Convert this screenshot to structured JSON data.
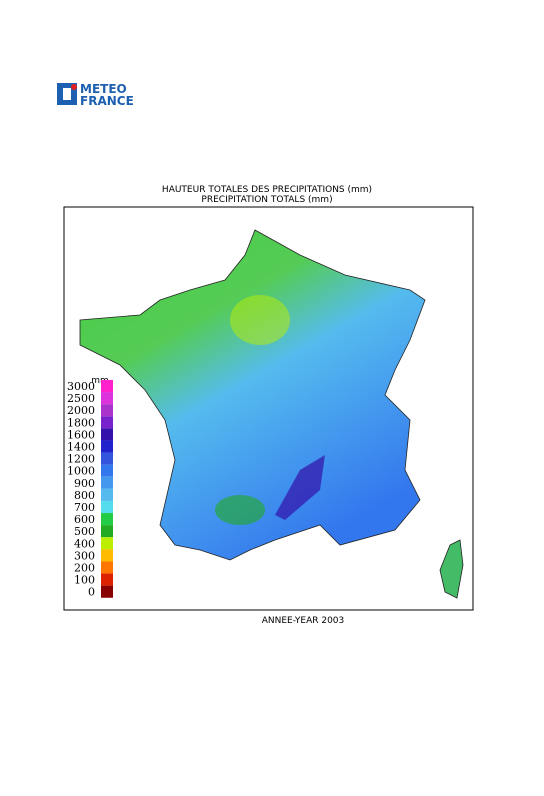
{
  "logo": {
    "line1": "METEO",
    "line2": "FRANCE"
  },
  "map": {
    "title": "HAUTEUR TOTALES DES PRECIPITATIONS (mm)",
    "subtitle": "PRECIPITATION TOTALS (mm)",
    "footer": "ANNEE-YEAR 2003",
    "legend": {
      "unit": "mm",
      "levels": [
        {
          "value": 3000,
          "color": "#ff22cc"
        },
        {
          "value": 2500,
          "color": "#dd33dd"
        },
        {
          "value": 2000,
          "color": "#aa33cc"
        },
        {
          "value": 1800,
          "color": "#7722cc"
        },
        {
          "value": 1600,
          "color": "#3311aa"
        },
        {
          "value": 1400,
          "color": "#2222cc"
        },
        {
          "value": 1200,
          "color": "#3355dd"
        },
        {
          "value": 1000,
          "color": "#3377ee"
        },
        {
          "value": 900,
          "color": "#4499ee"
        },
        {
          "value": 800,
          "color": "#55bbee"
        },
        {
          "value": 700,
          "color": "#55ddee"
        },
        {
          "value": 600,
          "color": "#22cc44"
        },
        {
          "value": 500,
          "color": "#22aa22"
        },
        {
          "value": 400,
          "color": "#bbee00"
        },
        {
          "value": 300,
          "color": "#ffbb00"
        },
        {
          "value": 200,
          "color": "#ff7700"
        },
        {
          "value": 100,
          "color": "#dd2200"
        },
        {
          "value": 0,
          "color": "#880000"
        }
      ]
    }
  }
}
